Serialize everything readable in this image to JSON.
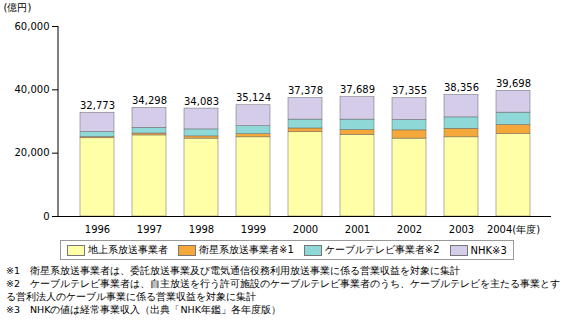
{
  "chart_data": {
    "type": "bar",
    "stacked": true,
    "ylabel": "(億円)",
    "categories": [
      "1996",
      "1997",
      "1998",
      "1999",
      "2000",
      "2001",
      "2002",
      "2003",
      "2004(年度)"
    ],
    "series": [
      {
        "name": "地上系放送事業者",
        "color": "#ffffa8",
        "values": [
          24700,
          25600,
          24600,
          25000,
          26600,
          25800,
          24600,
          25000,
          26000
        ]
      },
      {
        "name": "衛星系放送事業者※1",
        "color": "#f4a83a",
        "values": [
          400,
          600,
          700,
          1000,
          1200,
          1500,
          2600,
          2700,
          2900
        ]
      },
      {
        "name": "ケーブルテレビ事業者※2",
        "color": "#8ed8d8",
        "values": [
          1600,
          1800,
          2200,
          2500,
          2800,
          3300,
          3300,
          3600,
          3900
        ]
      },
      {
        "name": "NHK※3",
        "color": "#d4cce8",
        "values": [
          6073,
          6298,
          6583,
          6624,
          6778,
          7089,
          6855,
          7056,
          6898
        ]
      }
    ],
    "totals": [
      32773,
      34298,
      34083,
      35124,
      37378,
      37689,
      37355,
      38356,
      39698
    ],
    "total_labels": [
      "32,773",
      "34,298",
      "34,083",
      "35,124",
      "37,378",
      "37,689",
      "37,355",
      "38,356",
      "39,698"
    ],
    "ylim": [
      0,
      60000
    ],
    "yticks": [
      0,
      {
        "value": 20000,
        "label": "20,000"
      },
      {
        "value": 40000,
        "label": "40,000"
      },
      {
        "value": 60000,
        "label": "60,000"
      }
    ],
    "grid": false,
    "legend": "bottom",
    "notes": [
      "※1　衛星系放送事業者は、委託放送事業及び電気通信役務利用放送事業に係る営業収益を対象に集計",
      "※2　ケーブルテレビ事業者は、自主放送を行う許可施設のケーブルテレビ事業者のうち、ケーブルテレビを主たる事業とする営利法人のケーブル事業に係る営業収益を対象に集計",
      "※3　NHKの値は経常事業収入（出典「NHK年鑑」各年度版）"
    ]
  }
}
